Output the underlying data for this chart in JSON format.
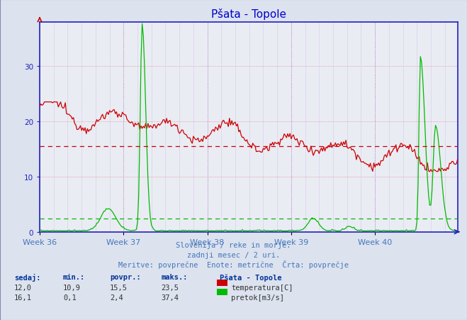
{
  "title": "Pšata - Topole",
  "title_color": "#0000cc",
  "bg_color": "#dce2ee",
  "plot_bg_color": "#eaecf4",
  "grid_color_h": "#ee9999",
  "grid_color_v": "#ccaacc",
  "xlabel_ticks": [
    "Week 36",
    "Week 37",
    "Week 38",
    "Week 39",
    "Week 40"
  ],
  "n_points": 360,
  "temp_color": "#cc0000",
  "flow_color": "#00bb00",
  "avg_temp": 15.5,
  "avg_flow": 2.4,
  "subtitle1": "Slovenija / reke in morje.",
  "subtitle2": "zadnji mesec / 2 uri.",
  "subtitle3": "Meritve: povprečne  Enote: metrične  Črta: povprečje",
  "subtitle_color": "#4477bb",
  "table_label_color": "#003399",
  "table_headers": [
    "sedaj:",
    "min.:",
    "povpr.:",
    "maks.:"
  ],
  "temp_row": [
    "12,0",
    "10,9",
    "15,5",
    "23,5"
  ],
  "flow_row": [
    "16,1",
    "0,1",
    "2,4",
    "37,4"
  ],
  "legend_title": "Pšata - Topole",
  "legend_temp": "temperatura[C]",
  "legend_flow": "pretok[m3/s]",
  "ymax": 38,
  "yticks": [
    0,
    10,
    20,
    30
  ],
  "spine_color": "#2222bb",
  "tick_label_color": "#2222bb",
  "watermark_color": "#22448855"
}
